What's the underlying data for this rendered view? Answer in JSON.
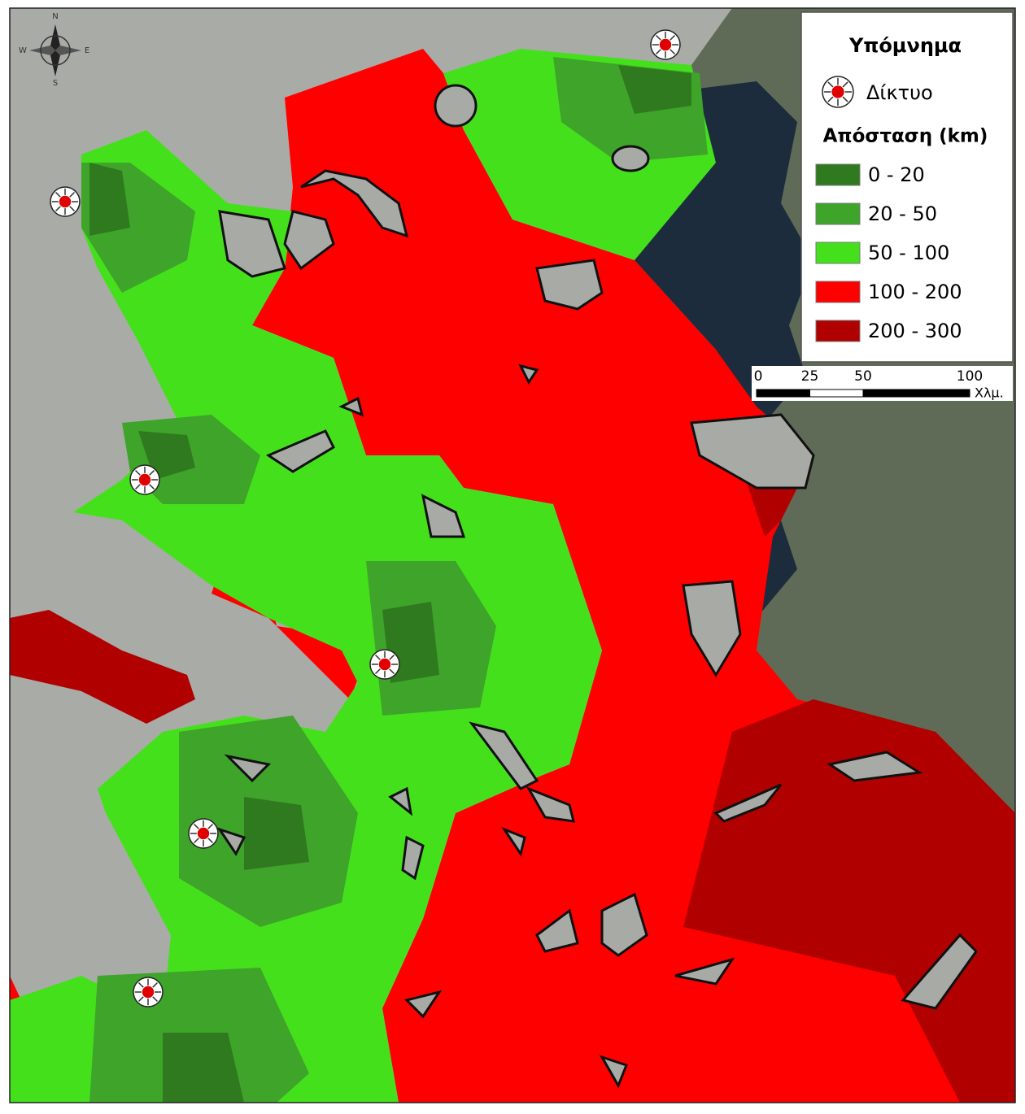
{
  "legend": {
    "title": "Υπόμνημα",
    "network_label": "Δίκτυο",
    "distance_title": "Απόσταση (km)",
    "classes": [
      {
        "label": "0 - 20",
        "color": "#2f7a1e"
      },
      {
        "label": "20 - 50",
        "color": "#3ea42a"
      },
      {
        "label": "50 - 100",
        "color": "#45e01c"
      },
      {
        "label": "100 - 200",
        "color": "#ff0000"
      },
      {
        "label": "200 - 300",
        "color": "#b00000"
      }
    ]
  },
  "scale_bar": {
    "ticks": [
      0,
      25,
      50,
      100
    ],
    "unit": "Χλμ."
  },
  "compass": {
    "n": "N",
    "s": "S",
    "e": "E",
    "w": "W"
  }
}
